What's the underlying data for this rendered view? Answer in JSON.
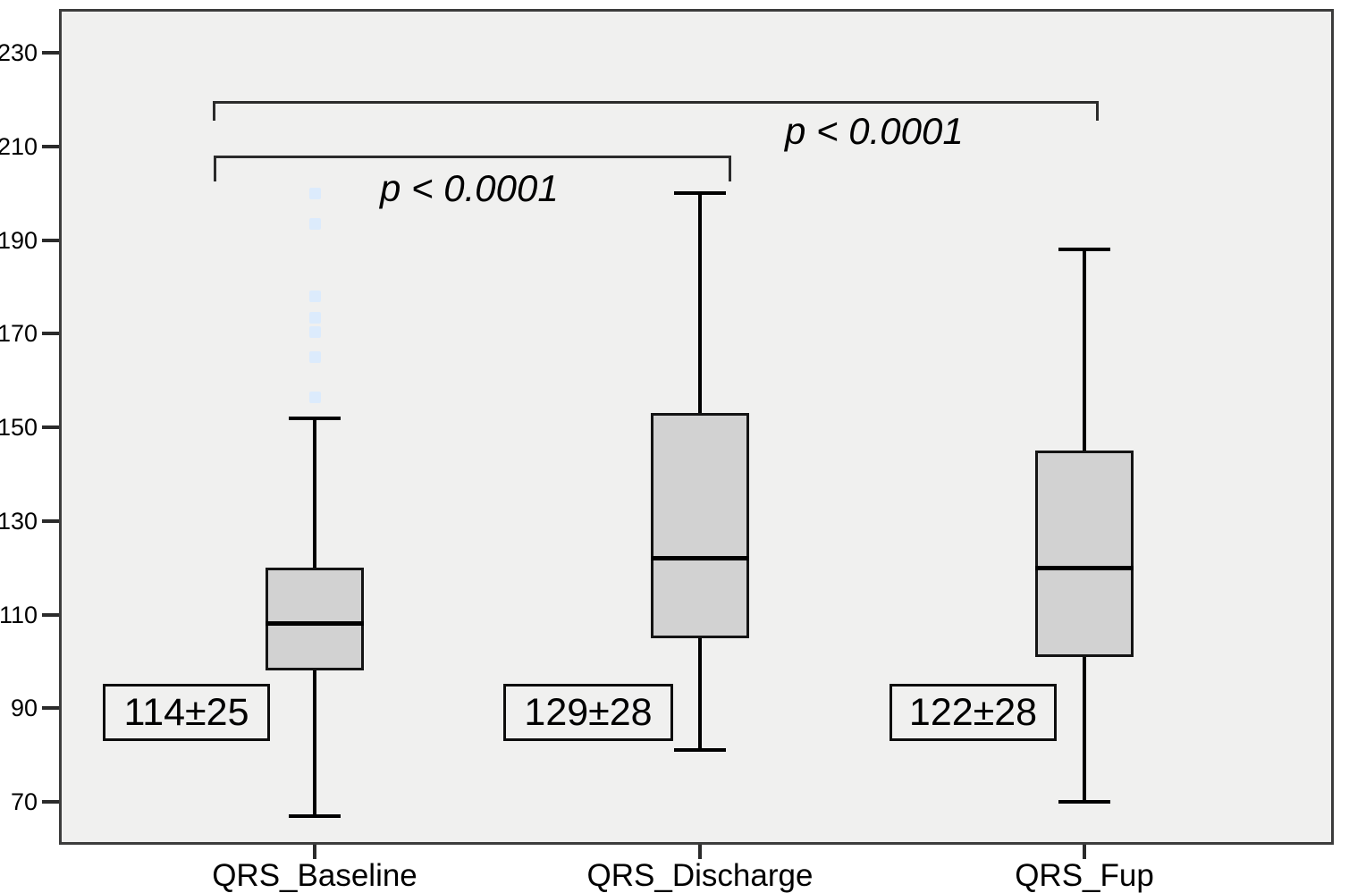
{
  "figure": {
    "page_bg": "#ffffff",
    "plot_bg": "#f0f0ef",
    "frame_color": "#3c3c3c",
    "box_fill": "#d2d2d2",
    "line_color": "#000000",
    "outlier_color": "#dcebfc"
  },
  "chart_data": {
    "type": "boxplot",
    "title": "",
    "xlabel": "",
    "ylabel": "",
    "ylim": [
      61,
      239
    ],
    "grid": false,
    "yticks": [
      "230",
      "210",
      "190",
      "170",
      "150",
      "130",
      "110",
      "90",
      "70"
    ],
    "ytick_values": [
      230,
      210,
      190,
      170,
      150,
      130,
      110,
      90,
      70
    ],
    "categories": [
      "QRS_Baseline",
      "QRS_Discharge",
      "QRS_Fup"
    ],
    "series": [
      {
        "name": "QRS_Baseline",
        "whisker_low": 67,
        "q1": 98,
        "median": 108,
        "q3": 120,
        "whisker_high": 152,
        "mean_sd_label": "114±25",
        "outlier_values": [
          200,
          193.5,
          178,
          173.5,
          170.5,
          165,
          156.5
        ]
      },
      {
        "name": "QRS_Discharge",
        "whisker_low": 81,
        "q1": 105,
        "median": 122,
        "q3": 153,
        "whisker_high": 200,
        "mean_sd_label": "129±28",
        "outlier_values": []
      },
      {
        "name": "QRS_Fup",
        "whisker_low": 70,
        "q1": 101,
        "median": 120,
        "q3": 145,
        "whisker_high": 188,
        "mean_sd_label": "122±28",
        "outlier_values": []
      }
    ],
    "annotations": [
      {
        "label": "p < 0.0001",
        "from": "QRS_Baseline",
        "to": "QRS_Discharge",
        "level": "inner"
      },
      {
        "label": "p < 0.0001",
        "from": "QRS_Baseline",
        "to": "QRS_Fup",
        "level": "outer"
      }
    ],
    "legend": null
  }
}
